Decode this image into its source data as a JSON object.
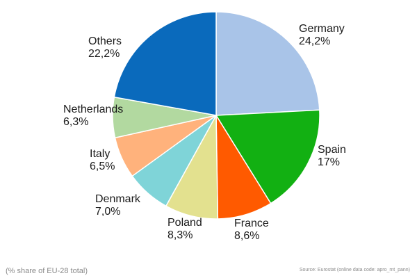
{
  "chart_data": {
    "type": "pie",
    "categories": [
      "Germany",
      "Spain",
      "France",
      "Poland",
      "Denmark",
      "Italy",
      "Netherlands",
      "Others"
    ],
    "values": [
      24.2,
      17,
      8.6,
      8.3,
      7.0,
      6.5,
      6.3,
      22.2
    ],
    "value_labels": [
      "24,2%",
      "17%",
      "8,6%",
      "8,3%",
      "7,0%",
      "6,5%",
      "6,3%",
      "22,2%"
    ],
    "colors": [
      "#a9c4e8",
      "#12b012",
      "#ff5a00",
      "#e3e18f",
      "#7fd4d8",
      "#ffb27c",
      "#b2d9a0",
      "#0a6abc"
    ],
    "start": "12 o'clock",
    "direction": "clockwise",
    "legend": "none"
  },
  "unit_note": "(% share of EU-28 total)",
  "source_note": "Source: Eurostat (online data code: apro_mt_pann)"
}
